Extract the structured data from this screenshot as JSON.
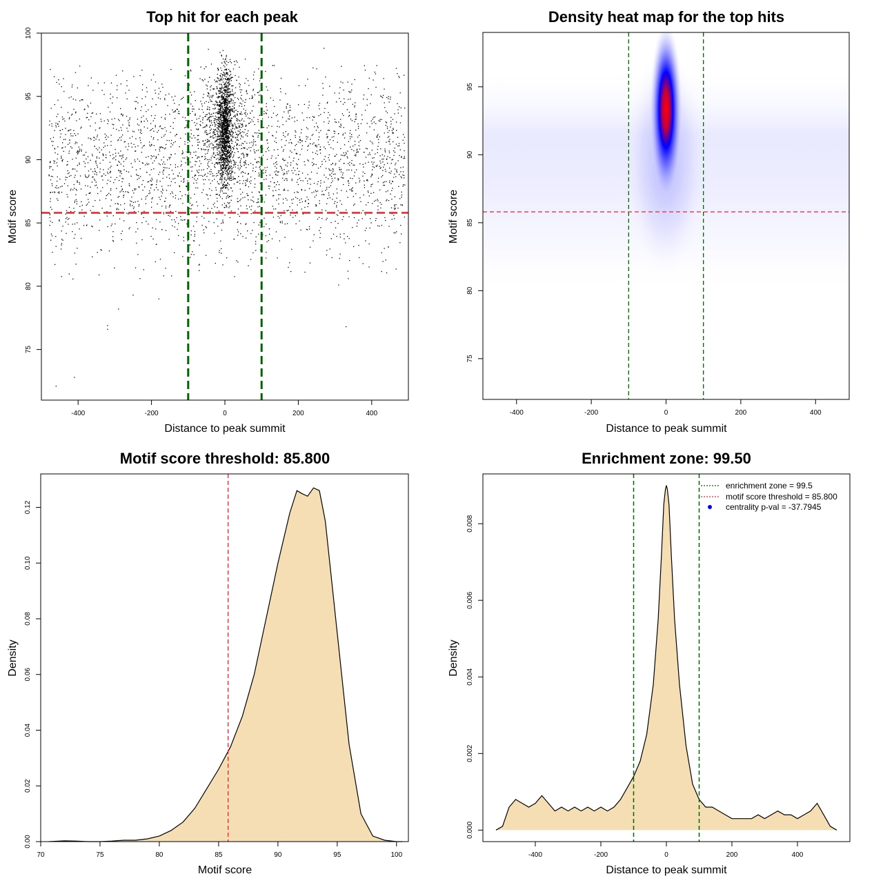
{
  "chart_data": [
    {
      "type": "scatter",
      "title": "Top hit for each peak",
      "xlabel": "Distance to peak summit",
      "ylabel": "Motif score",
      "xlim": [
        -500,
        500
      ],
      "ylim": [
        71,
        100
      ],
      "xticks": [
        -400,
        -200,
        0,
        200,
        400
      ],
      "yticks": [
        75,
        80,
        85,
        90,
        95,
        100
      ],
      "vlines": [
        -100,
        100
      ],
      "hline": 85.8,
      "vline_color": "#006400",
      "hline_color": "#e8202a",
      "point_color": "#000000",
      "background_band": {
        "x_range": [
          -480,
          490
        ],
        "y_center": 89.5,
        "y_sd": 3.6
      },
      "central_cluster": {
        "x_center": 0,
        "x_sd": 9,
        "y_center": 92.5,
        "y_sd": 2.2
      },
      "outliers": [
        [
          -460,
          72.1
        ],
        [
          -410,
          72.8
        ],
        [
          -320,
          76.6
        ],
        [
          -320,
          76.9
        ],
        [
          -290,
          78.2
        ],
        [
          -250,
          79.3
        ],
        [
          -180,
          79.0
        ],
        [
          330,
          76.8
        ],
        [
          310,
          80.1
        ],
        [
          460,
          85.6
        ],
        [
          270,
          98.8
        ]
      ]
    },
    {
      "type": "heatmap",
      "title": "Density heat map for the top hits",
      "xlabel": "Distance to peak summit",
      "ylabel": "Motif score",
      "xlim": [
        -490,
        490
      ],
      "ylim": [
        72,
        99
      ],
      "xticks": [
        -400,
        -200,
        0,
        200,
        400
      ],
      "yticks": [
        75,
        80,
        85,
        90,
        95
      ],
      "vlines": [
        -100,
        100
      ],
      "hline": 85.8,
      "colors": [
        "#ffffff",
        "#0000ff",
        "#ff0000"
      ],
      "peak": {
        "x": 0,
        "y": 93.3
      }
    },
    {
      "type": "area",
      "title": "Motif score threshold: 85.800",
      "xlabel": "Motif score",
      "ylabel": "Density",
      "xlim": [
        70,
        101
      ],
      "ylim": [
        0,
        0.132
      ],
      "xticks": [
        70,
        75,
        80,
        85,
        90,
        95,
        100
      ],
      "yticks": [
        0.0,
        0.02,
        0.04,
        0.06,
        0.08,
        0.1,
        0.12
      ],
      "ytick_labels": [
        "0.00",
        "0.02",
        "0.04",
        "0.06",
        "0.08",
        "0.10",
        "0.12"
      ],
      "vline": 85.8,
      "fill_color": "#f5deb3",
      "x": [
        70.7,
        72,
        73,
        74,
        75,
        76,
        77,
        78,
        79,
        80,
        81,
        82,
        83,
        84,
        85,
        86,
        87,
        88,
        89,
        90,
        91,
        91.6,
        92,
        92.5,
        93,
        93.5,
        94,
        95,
        96,
        97,
        98,
        99,
        100,
        100.5
      ],
      "y": [
        0,
        0.0003,
        0.0002,
        0,
        0,
        0.0002,
        0.0005,
        0.0005,
        0.001,
        0.002,
        0.004,
        0.007,
        0.012,
        0.019,
        0.026,
        0.034,
        0.045,
        0.06,
        0.08,
        0.1,
        0.118,
        0.126,
        0.125,
        0.124,
        0.127,
        0.126,
        0.115,
        0.075,
        0.035,
        0.01,
        0.002,
        0.0005,
        0,
        0
      ]
    },
    {
      "type": "area",
      "title": "Enrichment zone: 99.50",
      "xlabel": "Distance to peak summit",
      "ylabel": "Density",
      "xlim": [
        -560,
        560
      ],
      "ylim": [
        -0.0003,
        0.0093
      ],
      "xticks": [
        -400,
        -200,
        0,
        200,
        400
      ],
      "yticks": [
        0.0,
        0.002,
        0.004,
        0.006,
        0.008
      ],
      "ytick_labels": [
        "0.000",
        "0.002",
        "0.004",
        "0.006",
        "0.008"
      ],
      "vlines": [
        -100,
        100
      ],
      "fill_color": "#f5deb3",
      "legend": {
        "position": "top-right",
        "entries": [
          {
            "label": "enrichment zone = 99.5",
            "color": "#006400",
            "style": "dotted-line"
          },
          {
            "label": "motif score threshold = 85.800",
            "color": "#e8202a",
            "style": "dotted-line"
          },
          {
            "label": "centrality p-val = -37.7945",
            "color": "#0000ff",
            "style": "point"
          }
        ]
      },
      "x": [
        -520,
        -500,
        -480,
        -460,
        -440,
        -420,
        -400,
        -380,
        -360,
        -340,
        -320,
        -300,
        -280,
        -260,
        -240,
        -220,
        -200,
        -180,
        -160,
        -140,
        -120,
        -100,
        -80,
        -60,
        -40,
        -25,
        -15,
        -8,
        -3,
        0,
        3,
        8,
        15,
        25,
        40,
        60,
        80,
        100,
        120,
        140,
        160,
        180,
        200,
        220,
        240,
        260,
        280,
        300,
        320,
        340,
        360,
        380,
        400,
        420,
        440,
        460,
        480,
        500,
        520
      ],
      "y": [
        0,
        0.0001,
        0.0006,
        0.0008,
        0.0007,
        0.0006,
        0.0007,
        0.0009,
        0.0007,
        0.0005,
        0.0006,
        0.0005,
        0.0006,
        0.0005,
        0.0006,
        0.0005,
        0.0006,
        0.0005,
        0.0006,
        0.0008,
        0.0011,
        0.0014,
        0.0018,
        0.0025,
        0.0038,
        0.0055,
        0.0072,
        0.0085,
        0.0089,
        0.009,
        0.0089,
        0.0085,
        0.0072,
        0.0055,
        0.0038,
        0.0022,
        0.0012,
        0.0008,
        0.0006,
        0.0006,
        0.0005,
        0.0004,
        0.0003,
        0.0003,
        0.0003,
        0.0003,
        0.0004,
        0.0003,
        0.0004,
        0.0005,
        0.0004,
        0.0004,
        0.0003,
        0.0004,
        0.0005,
        0.0007,
        0.0004,
        0.0001,
        0
      ]
    }
  ]
}
